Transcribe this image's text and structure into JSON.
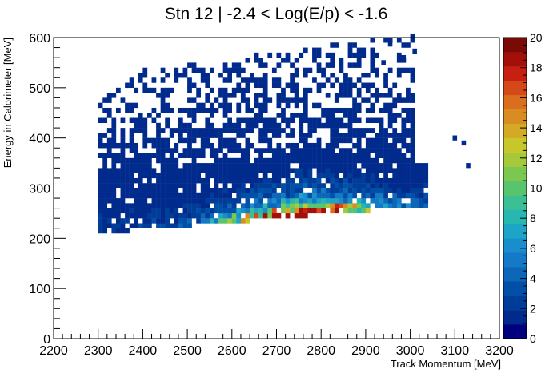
{
  "chart_data": {
    "type": "heatmap",
    "title": "Stn 12 | -2.4 < Log(E/p) < -1.6",
    "xlabel": "Track Momentum [MeV]",
    "ylabel": "Energy in Calorimeter [MeV]",
    "xlim": [
      2200,
      3200
    ],
    "ylim": [
      0,
      600
    ],
    "zlim": [
      0,
      20
    ],
    "x_ticks": [
      "2200",
      "2300",
      "2400",
      "2500",
      "2600",
      "2700",
      "2800",
      "2900",
      "3000",
      "3100",
      "3200"
    ],
    "y_ticks": [
      "0",
      "100",
      "200",
      "300",
      "400",
      "500",
      "600"
    ],
    "z_ticks": [
      "0",
      "2",
      "4",
      "6",
      "8",
      "10",
      "12",
      "14",
      "16",
      "18",
      "20"
    ],
    "grid": false,
    "colormap": [
      "#00007f",
      "#002a8c",
      "#003d99",
      "#0050a8",
      "#0d66b8",
      "#1479c6",
      "#1a8dcc",
      "#1ca5c7",
      "#25b7b0",
      "#3dbf95",
      "#59c46e",
      "#7bc750",
      "#a6c93b",
      "#c7c62a",
      "#d3aa26",
      "#d98c22",
      "#d96e1f",
      "#d4481a",
      "#c71f12",
      "#a3100a",
      "#7a0a05"
    ],
    "bins": {
      "x_range": [
        2300,
        3035
      ],
      "y_range": [
        210,
        600
      ],
      "count_distribution": "peak near (2755 MeV, 265 MeV), max ~19"
    },
    "outliers": [
      {
        "x": 3000,
        "y": 598
      },
      {
        "x": 3005,
        "y": 568
      },
      {
        "x": 3095,
        "y": 395
      },
      {
        "x": 3115,
        "y": 385
      },
      {
        "x": 3125,
        "y": 340
      },
      {
        "x": 2950,
        "y": 582
      },
      {
        "x": 2935,
        "y": 545
      },
      {
        "x": 2980,
        "y": 555
      }
    ]
  }
}
